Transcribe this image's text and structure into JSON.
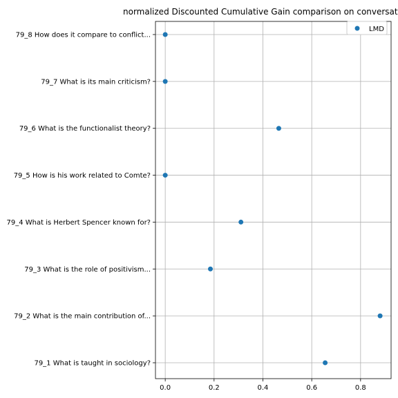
{
  "chart_data": {
    "type": "scatter",
    "title": "normalized Discounted Cumulative Gain comparison on conversat",
    "xlabel": "",
    "ylabel": "",
    "xlim": [
      -0.04,
      0.925
    ],
    "xticks": [
      0.0,
      0.2,
      0.4,
      0.6,
      0.8
    ],
    "xtick_labels": [
      "0.0",
      "0.2",
      "0.4",
      "0.6",
      "0.8"
    ],
    "grid": true,
    "legend_position": "top-right",
    "categories": [
      "79_1 What is taught in sociology?",
      "79_2 What is the main contribution of...",
      "79_3 What is the role of positivism...",
      "79_4 What is Herbert Spencer known for?",
      "79_5 How is his work related to Comte?",
      "79_6 What is the functionalist theory?",
      "79_7 What is its main criticism?",
      "79_8 How does it compare to conflict..."
    ],
    "series": [
      {
        "name": "LMD",
        "color": "#1f77b4",
        "values": [
          0.655,
          0.88,
          0.185,
          0.31,
          0.0,
          0.465,
          0.0,
          0.0
        ]
      }
    ]
  }
}
